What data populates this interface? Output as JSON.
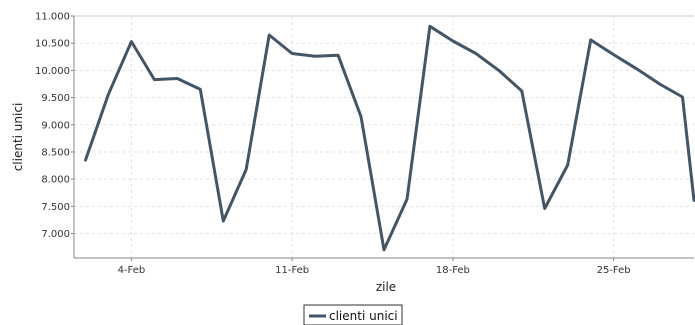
{
  "chart_data": {
    "type": "line",
    "xlabel": "zile",
    "ylabel": "clienti unici",
    "x_tick_labels": [
      "4-Feb",
      "11-Feb",
      "18-Feb",
      "25-Feb"
    ],
    "x_tick_days": [
      4,
      11,
      18,
      25
    ],
    "y_ticks": [
      7000,
      7500,
      8000,
      8500,
      9000,
      9500,
      10000,
      10500,
      11000
    ],
    "y_tick_labels": [
      "7.000",
      "7.500",
      "8.000",
      "8.500",
      "9.000",
      "9.500",
      "10.000",
      "10.500",
      "11.000"
    ],
    "ylim": [
      6550,
      11000
    ],
    "xlim": [
      1.5,
      28.5
    ],
    "grid": true,
    "legend_position": "bottom-center",
    "series": [
      {
        "name": "clienti unici",
        "color": "#445566",
        "x": [
          2,
          3,
          4,
          5,
          6,
          7,
          8,
          9,
          10,
          11,
          12,
          13,
          14,
          15,
          16,
          17,
          18,
          19,
          20,
          21,
          22,
          23,
          24,
          25,
          26,
          27,
          28
        ],
        "values": [
          8350,
          9560,
          10530,
          9830,
          9850,
          9650,
          7230,
          8180,
          10650,
          10310,
          10260,
          10280,
          9150,
          6700,
          7630,
          10810,
          10540,
          10310,
          10000,
          9620,
          7460,
          8260,
          10560,
          10290,
          10030,
          9750,
          9510
        ]
      }
    ],
    "last_point": {
      "x": 28.5,
      "value": 7610
    }
  }
}
